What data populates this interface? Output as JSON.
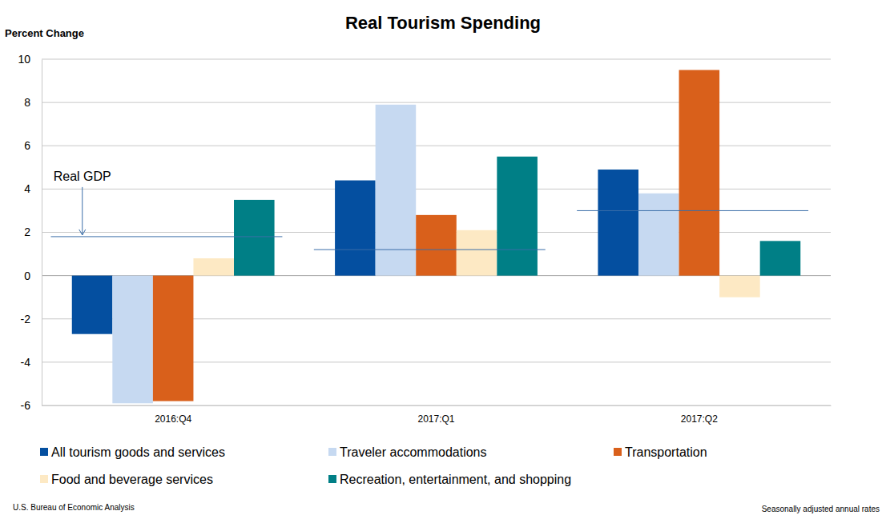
{
  "chart_data": {
    "type": "bar",
    "title": "Real Tourism Spending",
    "y_label": "Percent Change",
    "source": "U.S. Bureau of Economic Analysis",
    "note": "Seasonally adjusted annual rates",
    "categories": [
      "2016:Q4",
      "2017:Q1",
      "2017:Q2"
    ],
    "series": [
      {
        "name": "All tourism goods and services",
        "color": "#044fa0",
        "values": [
          -2.7,
          4.4,
          4.9
        ]
      },
      {
        "name": "Traveler accommodations",
        "color": "#c6d9f1",
        "values": [
          -5.9,
          7.9,
          3.8
        ]
      },
      {
        "name": "Transportation",
        "color": "#d9601b",
        "values": [
          -5.8,
          2.8,
          9.5
        ]
      },
      {
        "name": "Food and beverage services",
        "color": "#fde9c4",
        "values": [
          0.8,
          2.1,
          -1.0
        ]
      },
      {
        "name": "Recreation, entertainment, and shopping",
        "color": "#007f86",
        "values": [
          3.5,
          5.5,
          1.6
        ]
      },
      {
        "name": "Real GDP",
        "type": "line",
        "color": "#3a6ea8",
        "values": [
          1.8,
          1.2,
          3.0
        ]
      }
    ],
    "ylim": [
      -6,
      10
    ],
    "yticks": [
      -6,
      -4,
      -2,
      0,
      2,
      4,
      6,
      8,
      10
    ],
    "grid": true
  }
}
